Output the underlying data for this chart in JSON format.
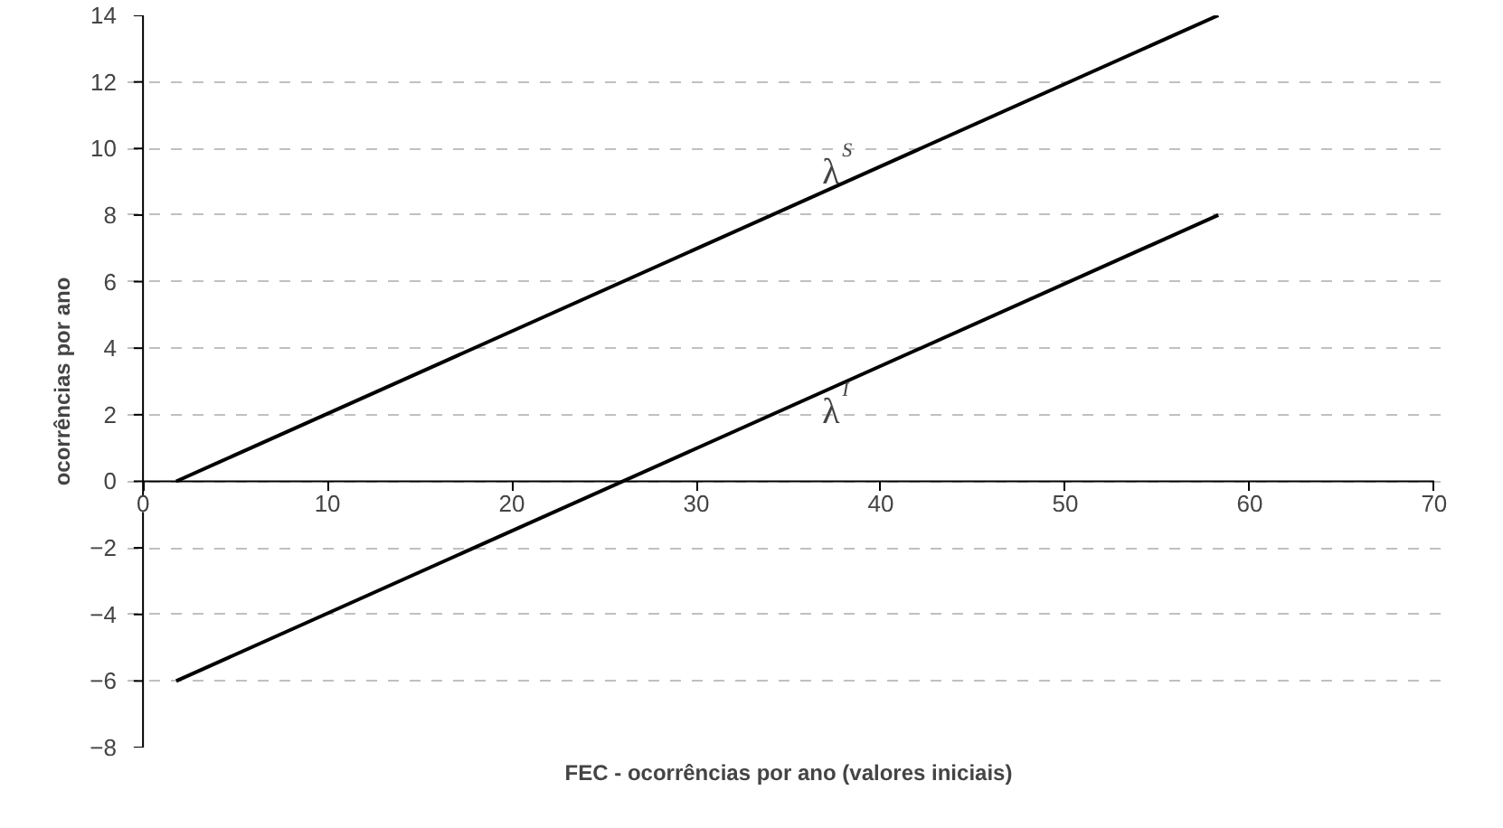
{
  "chart_data": {
    "type": "line",
    "xlabel": "FEC - ocorrências por ano (valores iniciais)",
    "ylabel": "ocorrências por ano",
    "x": [
      1.8,
      58.3
    ],
    "series": [
      {
        "color": "#000000",
        "values": [
          0,
          14
        ]
      },
      {
        "color": "#000000",
        "values": [
          -6,
          8
        ]
      }
    ],
    "annotations": [
      "λ$^{S}$",
      "λ$^{I}$"
    ],
    "xlim": [
      0,
      70
    ],
    "ylim": [
      -8,
      14
    ],
    "xticks": [
      0,
      10,
      20,
      30,
      40,
      50,
      60,
      70
    ],
    "yticks": [
      -8,
      -6,
      -4,
      -2,
      0,
      2,
      4,
      6,
      8,
      10,
      12,
      14
    ],
    "grid": "y",
    "marker": "none",
    "line_style": "solid"
  }
}
